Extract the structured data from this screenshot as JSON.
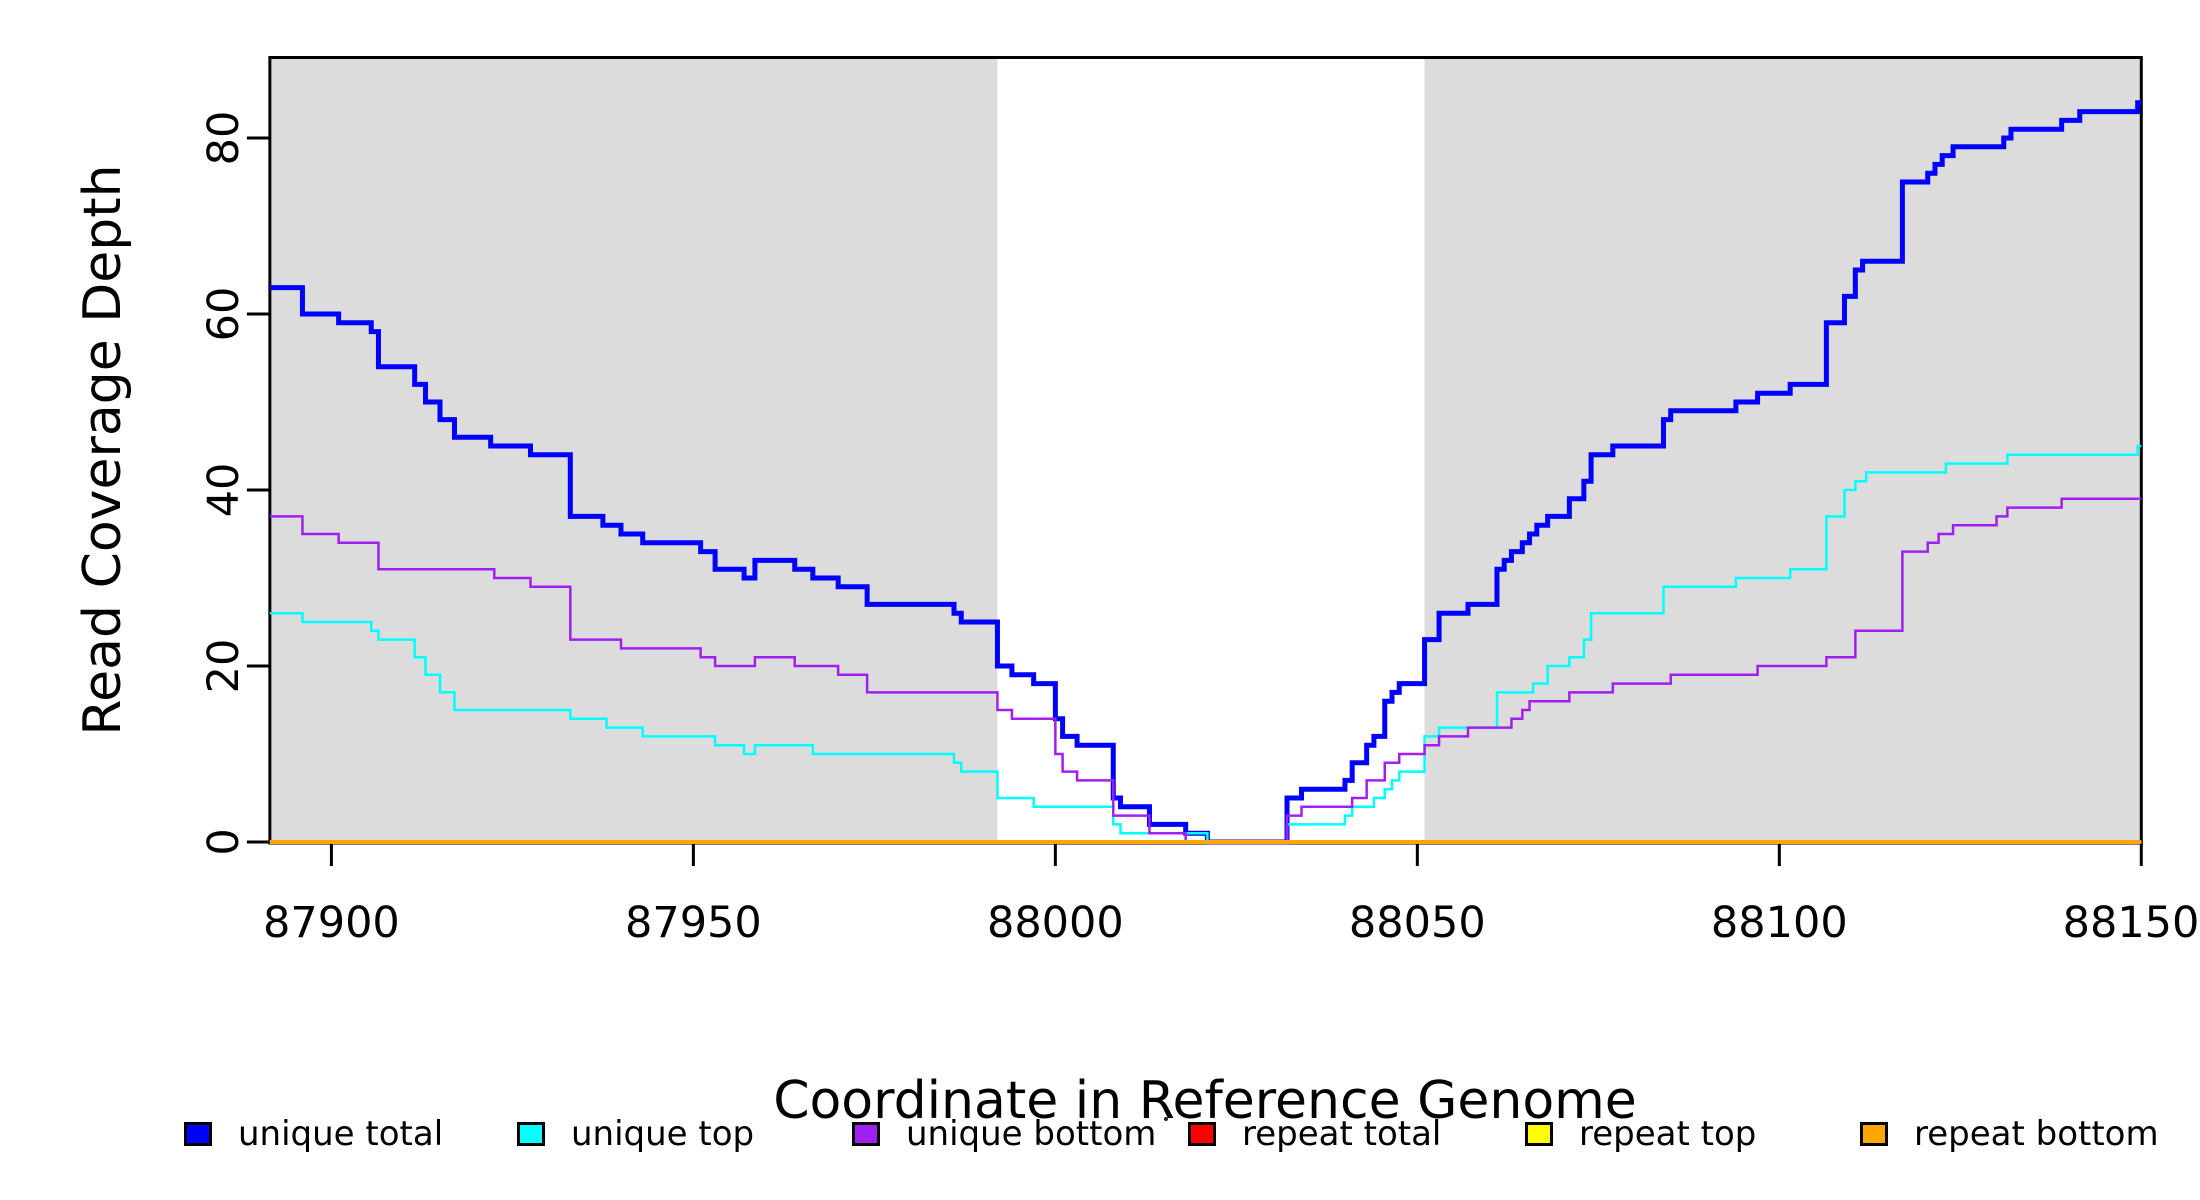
{
  "figure": {
    "background": "#FFFFFF",
    "plot_region_fill": "#DCDCDC"
  },
  "x_axis": {
    "label": "Coordinate in Reference Genome",
    "tick_labels": [
      "87900",
      "87950",
      "88000",
      "88050",
      "88100",
      "88150"
    ]
  },
  "y_axis": {
    "label": "Read Coverage Depth",
    "tick_labels": [
      "0",
      "20",
      "40",
      "60",
      "80"
    ]
  },
  "legend": {
    "entries": [
      {
        "label": "unique total",
        "color": "#0000FF"
      },
      {
        "label": "unique top",
        "color": "#00FFFF"
      },
      {
        "label": "unique bottom",
        "color": "#A020F0"
      },
      {
        "label": "repeat total",
        "color": "#FF0000"
      },
      {
        "label": "repeat top",
        "color": "#FFFF00"
      },
      {
        "label": "repeat bottom",
        "color": "#FFA500"
      }
    ]
  },
  "chart_data": {
    "type": "line",
    "step": "post",
    "title": "",
    "xlabel": "Coordinate in Reference Genome",
    "ylabel": "Read Coverage Depth",
    "xlim": [
      87891.5,
      88150
    ],
    "ylim": [
      0,
      89.2
    ],
    "x_ticks": [
      87900,
      87950,
      88000,
      88050,
      88100,
      88150
    ],
    "y_ticks": [
      0,
      20,
      40,
      60,
      80
    ],
    "grid": false,
    "legend_position": "bottom",
    "region_color": "#DCDCDC",
    "shaded_regions": [
      [
        87891.5,
        87992
      ],
      [
        88051,
        88150
      ]
    ],
    "series": [
      {
        "name": "repeat total",
        "color": "#FF0000",
        "width": 3,
        "points": [
          [
            87891.5,
            0
          ]
        ]
      },
      {
        "name": "repeat top",
        "color": "#FFFF00",
        "width": 3,
        "points": [
          [
            87891.5,
            0
          ]
        ]
      },
      {
        "name": "unique total",
        "color": "#0000FF",
        "width": 5,
        "points": [
          [
            87891.5,
            63
          ],
          [
            87896,
            60
          ],
          [
            87901,
            59
          ],
          [
            87905.5,
            58
          ],
          [
            87906.5,
            54
          ],
          [
            87911.5,
            52
          ],
          [
            87913,
            50
          ],
          [
            87915,
            48
          ],
          [
            87917,
            46
          ],
          [
            87922,
            45
          ],
          [
            87927.5,
            44
          ],
          [
            87933,
            37
          ],
          [
            87937.5,
            36
          ],
          [
            87940,
            35
          ],
          [
            87943,
            34
          ],
          [
            87951,
            33
          ],
          [
            87953,
            31
          ],
          [
            87957,
            30
          ],
          [
            87958.5,
            32
          ],
          [
            87964,
            31
          ],
          [
            87966.5,
            30
          ],
          [
            87970,
            29
          ],
          [
            87974,
            27
          ],
          [
            87986,
            26
          ],
          [
            87987,
            25
          ],
          [
            87992,
            20
          ],
          [
            87994,
            19
          ],
          [
            87997,
            18
          ],
          [
            88000,
            14
          ],
          [
            88001,
            12
          ],
          [
            88003,
            11
          ],
          [
            88008,
            5
          ],
          [
            88009,
            4
          ],
          [
            88013,
            2
          ],
          [
            88018,
            1
          ],
          [
            88021,
            0
          ],
          [
            88032,
            5
          ],
          [
            88034,
            6
          ],
          [
            88040,
            7
          ],
          [
            88041,
            9
          ],
          [
            88043,
            11
          ],
          [
            88044,
            12
          ],
          [
            88045.5,
            16
          ],
          [
            88046.5,
            17
          ],
          [
            88047.5,
            18
          ],
          [
            88051,
            23
          ],
          [
            88053,
            26
          ],
          [
            88057,
            27
          ],
          [
            88061,
            31
          ],
          [
            88062,
            32
          ],
          [
            88063,
            33
          ],
          [
            88064.5,
            34
          ],
          [
            88065.5,
            35
          ],
          [
            88066.5,
            36
          ],
          [
            88068,
            37
          ],
          [
            88071,
            39
          ],
          [
            88073,
            41
          ],
          [
            88074,
            44
          ],
          [
            88077,
            45
          ],
          [
            88084,
            48
          ],
          [
            88085,
            49
          ],
          [
            88094,
            50
          ],
          [
            88097,
            51
          ],
          [
            88101.5,
            52
          ],
          [
            88106.5,
            59
          ],
          [
            88109,
            62
          ],
          [
            88110.5,
            65
          ],
          [
            88111.5,
            66
          ],
          [
            88117,
            75
          ],
          [
            88120.5,
            76
          ],
          [
            88121.5,
            77
          ],
          [
            88122.5,
            78
          ],
          [
            88124,
            79
          ],
          [
            88131,
            80
          ],
          [
            88132,
            81
          ],
          [
            88139,
            82
          ],
          [
            88141.5,
            83
          ],
          [
            88149.5,
            84
          ]
        ]
      },
      {
        "name": "unique top",
        "color": "#00FFFF",
        "width": 2.5,
        "points": [
          [
            87891.5,
            26
          ],
          [
            87896,
            25
          ],
          [
            87905.5,
            24
          ],
          [
            87906.5,
            23
          ],
          [
            87911.5,
            21
          ],
          [
            87913,
            19
          ],
          [
            87915,
            17
          ],
          [
            87917,
            15
          ],
          [
            87933,
            14
          ],
          [
            87938,
            13
          ],
          [
            87943,
            12
          ],
          [
            87953,
            11
          ],
          [
            87957,
            10
          ],
          [
            87958.5,
            11
          ],
          [
            87966.5,
            10
          ],
          [
            87986,
            9
          ],
          [
            87987,
            8
          ],
          [
            87992,
            5
          ],
          [
            87997,
            4
          ],
          [
            88008,
            2
          ],
          [
            88009,
            1
          ],
          [
            88021,
            0
          ],
          [
            88032,
            2
          ],
          [
            88040,
            3
          ],
          [
            88041,
            4
          ],
          [
            88044,
            5
          ],
          [
            88045.5,
            6
          ],
          [
            88046.5,
            7
          ],
          [
            88047.5,
            8
          ],
          [
            88051,
            12
          ],
          [
            88053,
            13
          ],
          [
            88061,
            17
          ],
          [
            88066,
            18
          ],
          [
            88068,
            20
          ],
          [
            88071,
            21
          ],
          [
            88073,
            23
          ],
          [
            88074,
            26
          ],
          [
            88084,
            29
          ],
          [
            88094,
            30
          ],
          [
            88101.5,
            31
          ],
          [
            88106.5,
            37
          ],
          [
            88109,
            40
          ],
          [
            88110.5,
            41
          ],
          [
            88112,
            42
          ],
          [
            88123,
            43
          ],
          [
            88131.5,
            44
          ],
          [
            88149.5,
            45
          ]
        ]
      },
      {
        "name": "unique bottom",
        "color": "#A020F0",
        "width": 2.5,
        "points": [
          [
            87891.5,
            37
          ],
          [
            87896,
            35
          ],
          [
            87901,
            34
          ],
          [
            87906.5,
            31
          ],
          [
            87922.5,
            30
          ],
          [
            87927.5,
            29
          ],
          [
            87933,
            23
          ],
          [
            87940,
            22
          ],
          [
            87951,
            21
          ],
          [
            87953,
            20
          ],
          [
            87958.5,
            21
          ],
          [
            87964,
            20
          ],
          [
            87970,
            19
          ],
          [
            87974,
            17
          ],
          [
            87992,
            15
          ],
          [
            87994,
            14
          ],
          [
            88000,
            10
          ],
          [
            88001,
            8
          ],
          [
            88003,
            7
          ],
          [
            88008,
            3
          ],
          [
            88013,
            1
          ],
          [
            88018,
            0
          ],
          [
            88032,
            3
          ],
          [
            88034,
            4
          ],
          [
            88041,
            5
          ],
          [
            88043,
            7
          ],
          [
            88045.5,
            9
          ],
          [
            88047.5,
            10
          ],
          [
            88051,
            11
          ],
          [
            88053,
            12
          ],
          [
            88057,
            13
          ],
          [
            88063,
            14
          ],
          [
            88064.5,
            15
          ],
          [
            88065.5,
            16
          ],
          [
            88071,
            17
          ],
          [
            88077,
            18
          ],
          [
            88085,
            19
          ],
          [
            88097,
            20
          ],
          [
            88106.5,
            21
          ],
          [
            88110.5,
            24
          ],
          [
            88117,
            33
          ],
          [
            88120.5,
            34
          ],
          [
            88122,
            35
          ],
          [
            88124,
            36
          ],
          [
            88130,
            37
          ],
          [
            88131.5,
            38
          ],
          [
            88139,
            39
          ]
        ]
      },
      {
        "name": "repeat bottom",
        "color": "#FFA500",
        "width": 4,
        "points": [
          [
            87891.5,
            0
          ]
        ]
      }
    ]
  }
}
